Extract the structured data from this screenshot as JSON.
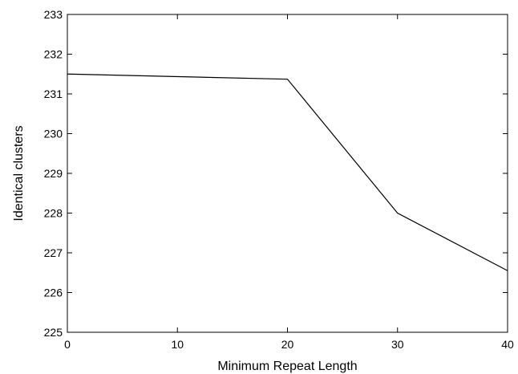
{
  "chart_data": {
    "type": "line",
    "title": "",
    "xlabel": "Minimum Repeat Length",
    "ylabel": "Identical clusters",
    "xlim": [
      0,
      40
    ],
    "ylim": [
      225,
      233
    ],
    "xticks": [
      0,
      10,
      20,
      30,
      40
    ],
    "yticks": [
      225,
      226,
      227,
      228,
      229,
      230,
      231,
      232,
      233
    ],
    "grid": false,
    "series": [
      {
        "x": [
          0,
          20,
          30,
          40
        ],
        "y": [
          231.5,
          231.37,
          228.0,
          226.55
        ],
        "color": "#000000"
      }
    ]
  }
}
